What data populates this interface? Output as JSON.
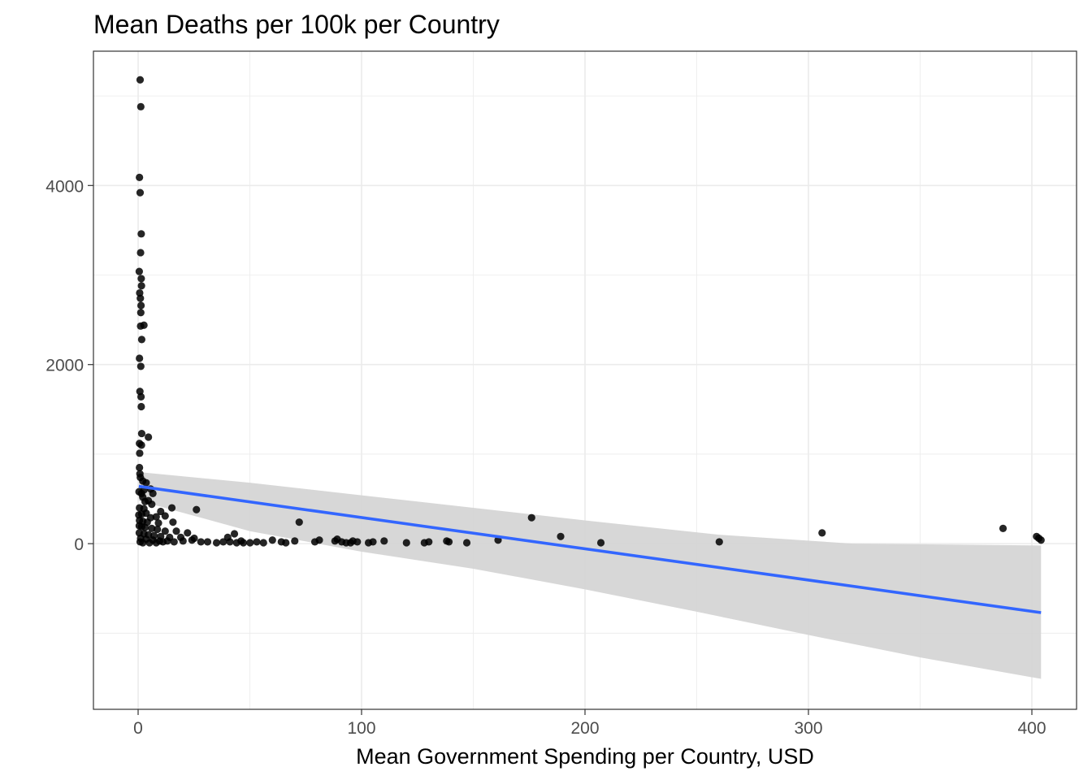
{
  "chart_data": {
    "type": "scatter",
    "title": "Mean Deaths per 100k per Country",
    "xlabel": "Mean Government Spending per Country, USD",
    "ylabel": "",
    "xlim": [
      -20,
      420
    ],
    "ylim": [
      -1850,
      5500
    ],
    "x_ticks": [
      "0",
      "100",
      "200",
      "300",
      "400"
    ],
    "x_tick_values": [
      0,
      100,
      200,
      300,
      400
    ],
    "y_ticks": [
      "0",
      "2000",
      "4000"
    ],
    "y_tick_values": [
      0,
      2000,
      4000
    ],
    "x_minor": [
      50,
      150,
      250,
      350
    ],
    "y_minor": [
      -1000,
      1000,
      3000,
      5000
    ],
    "grid": true,
    "legend": "none",
    "colors": {
      "points": "#000000",
      "fit_line": "#3366ff",
      "ribbon": "#d3d3d3",
      "grid": "#ebebeb",
      "panel_border": "#333333",
      "tick_label": "#4d4d4d"
    },
    "points": [
      [
        0.9,
        5180
      ],
      [
        1.2,
        4880
      ],
      [
        0.6,
        4090
      ],
      [
        0.9,
        3920
      ],
      [
        1.4,
        3460
      ],
      [
        1.1,
        3250
      ],
      [
        0.5,
        3040
      ],
      [
        1.4,
        2960
      ],
      [
        1.5,
        2880
      ],
      [
        0.7,
        2800
      ],
      [
        1.0,
        2740
      ],
      [
        1.3,
        2660
      ],
      [
        1.2,
        2580
      ],
      [
        1.1,
        2430
      ],
      [
        2.6,
        2440
      ],
      [
        1.6,
        2280
      ],
      [
        0.6,
        2070
      ],
      [
        1.2,
        1980
      ],
      [
        0.8,
        1700
      ],
      [
        1.3,
        1640
      ],
      [
        1.4,
        1530
      ],
      [
        1.6,
        1230
      ],
      [
        4.6,
        1190
      ],
      [
        0.6,
        1120
      ],
      [
        1.5,
        1100
      ],
      [
        0.7,
        1010
      ],
      [
        0.6,
        850
      ],
      [
        0.8,
        780
      ],
      [
        1.0,
        740
      ],
      [
        2.1,
        700
      ],
      [
        3.6,
        680
      ],
      [
        0.4,
        580
      ],
      [
        1.5,
        560
      ],
      [
        2.6,
        600
      ],
      [
        5.6,
        610
      ],
      [
        6.6,
        560
      ],
      [
        2.1,
        520
      ],
      [
        3.1,
        470
      ],
      [
        4.6,
        480
      ],
      [
        6.1,
        440
      ],
      [
        0.6,
        400
      ],
      [
        2.6,
        390
      ],
      [
        3.6,
        340
      ],
      [
        1.6,
        330
      ],
      [
        0.3,
        320
      ],
      [
        5.6,
        290
      ],
      [
        8.1,
        300
      ],
      [
        10.1,
        360
      ],
      [
        12.1,
        310
      ],
      [
        15.1,
        400
      ],
      [
        26.1,
        380
      ],
      [
        0.6,
        260
      ],
      [
        2.1,
        250
      ],
      [
        4.1,
        240
      ],
      [
        9.1,
        230
      ],
      [
        15.6,
        240
      ],
      [
        0.5,
        200
      ],
      [
        1.6,
        190
      ],
      [
        3.1,
        180
      ],
      [
        6.1,
        170
      ],
      [
        8.6,
        160
      ],
      [
        12.1,
        140
      ],
      [
        17.1,
        140
      ],
      [
        22.1,
        120
      ],
      [
        0.5,
        120
      ],
      [
        2.6,
        110
      ],
      [
        4.6,
        100
      ],
      [
        7.1,
        90
      ],
      [
        10.1,
        80
      ],
      [
        14.1,
        70
      ],
      [
        19.1,
        70
      ],
      [
        25.1,
        60
      ],
      [
        1.1,
        60
      ],
      [
        3.6,
        50
      ],
      [
        6.6,
        40
      ],
      [
        9.6,
        30
      ],
      [
        13.1,
        30
      ],
      [
        16.1,
        20
      ],
      [
        20.1,
        30
      ],
      [
        24.1,
        40
      ],
      [
        28.1,
        20
      ],
      [
        31.1,
        20
      ],
      [
        35.1,
        10
      ],
      [
        38.1,
        20
      ],
      [
        41.1,
        20
      ],
      [
        44.1,
        10
      ],
      [
        47.1,
        10
      ],
      [
        50.1,
        10
      ],
      [
        53.1,
        20
      ],
      [
        56.1,
        10
      ],
      [
        0.9,
        20
      ],
      [
        2.1,
        10
      ],
      [
        5.1,
        10
      ],
      [
        8.1,
        10
      ],
      [
        11.1,
        20
      ],
      [
        40.1,
        70
      ],
      [
        43.1,
        110
      ],
      [
        46.1,
        30
      ],
      [
        60.1,
        40
      ],
      [
        64.1,
        20
      ],
      [
        66.1,
        10
      ],
      [
        70.1,
        30
      ],
      [
        72.1,
        240
      ],
      [
        79.1,
        20
      ],
      [
        81.1,
        40
      ],
      [
        88.1,
        30
      ],
      [
        89.1,
        50
      ],
      [
        91.1,
        20
      ],
      [
        93.1,
        10
      ],
      [
        95.1,
        10
      ],
      [
        96.1,
        30
      ],
      [
        98.1,
        20
      ],
      [
        103.1,
        10
      ],
      [
        105.1,
        20
      ],
      [
        110.1,
        30
      ],
      [
        120.1,
        10
      ],
      [
        128.1,
        10
      ],
      [
        130.1,
        20
      ],
      [
        138.1,
        30
      ],
      [
        139.1,
        20
      ],
      [
        147.1,
        10
      ],
      [
        161.1,
        40
      ],
      [
        176.1,
        290
      ],
      [
        189.1,
        80
      ],
      [
        207.1,
        10
      ],
      [
        260.1,
        20
      ],
      [
        306.1,
        120
      ],
      [
        387.1,
        170
      ],
      [
        402.1,
        80
      ],
      [
        403.1,
        60
      ],
      [
        404.1,
        40
      ]
    ],
    "fit_line": {
      "x": [
        0.3,
        404.1
      ],
      "y": [
        640,
        -770
      ]
    },
    "ribbon": [
      [
        0.3,
        800
      ],
      [
        50,
        680
      ],
      [
        100,
        540
      ],
      [
        150,
        400
      ],
      [
        200,
        260
      ],
      [
        260,
        100
      ],
      [
        320,
        0
      ],
      [
        404.1,
        -20
      ],
      [
        404.1,
        -1510
      ],
      [
        350,
        -1270
      ],
      [
        300,
        -1020
      ],
      [
        250,
        -760
      ],
      [
        200,
        -510
      ],
      [
        150,
        -280
      ],
      [
        100,
        -90
      ],
      [
        50,
        140
      ],
      [
        0.3,
        480
      ]
    ]
  }
}
